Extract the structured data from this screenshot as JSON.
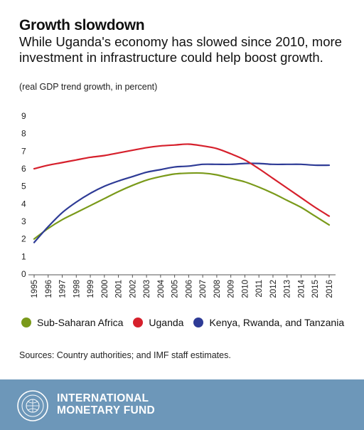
{
  "title": "Growth slowdown",
  "subtitle": "While Uganda's economy has slowed since 2010, more investment in infrastructure could help boost growth.",
  "unit_note": "(real GDP trend growth, in percent)",
  "source": "Sources: Country authorities; and IMF staff estimates.",
  "footer": {
    "line1": "INTERNATIONAL",
    "line2": "MONETARY FUND",
    "seal_icon": "imf-seal-icon"
  },
  "colors": {
    "sub_saharan": "#7a9a1a",
    "uganda": "#d6202c",
    "eac": "#2e3b96",
    "footer_bg": "#6d97b9"
  },
  "chart_data": {
    "type": "line",
    "title": "Growth slowdown",
    "ylabel": "(real GDP trend growth, in percent)",
    "xlabel": "",
    "ylim": [
      0,
      9
    ],
    "yticks": [
      0,
      1,
      2,
      3,
      4,
      5,
      6,
      7,
      8,
      9
    ],
    "grid": false,
    "legend_position": "bottom",
    "x": [
      "1995",
      "1996",
      "1997",
      "1998",
      "1999",
      "2000",
      "2001",
      "2002",
      "2003",
      "2004",
      "2005",
      "2006",
      "2007",
      "2008",
      "2009",
      "2010",
      "2011",
      "2012",
      "2013",
      "2014",
      "2015",
      "2016"
    ],
    "series": [
      {
        "name": "Sub-Saharan Africa",
        "color": "#7a9a1a",
        "values": [
          2.0,
          2.6,
          3.1,
          3.5,
          3.9,
          4.3,
          4.7,
          5.05,
          5.35,
          5.55,
          5.7,
          5.75,
          5.75,
          5.65,
          5.45,
          5.25,
          4.95,
          4.6,
          4.2,
          3.8,
          3.3,
          2.8
        ]
      },
      {
        "name": "Uganda",
        "color": "#d6202c",
        "values": [
          6.0,
          6.2,
          6.35,
          6.5,
          6.65,
          6.75,
          6.9,
          7.05,
          7.2,
          7.3,
          7.35,
          7.4,
          7.3,
          7.15,
          6.85,
          6.5,
          6.0,
          5.45,
          4.9,
          4.35,
          3.8,
          3.3
        ]
      },
      {
        "name": "Kenya, Rwanda, and Tanzania",
        "color": "#2e3b96",
        "values": [
          1.8,
          2.7,
          3.5,
          4.1,
          4.6,
          5.0,
          5.3,
          5.55,
          5.8,
          5.95,
          6.1,
          6.15,
          6.25,
          6.25,
          6.25,
          6.3,
          6.3,
          6.25,
          6.25,
          6.25,
          6.2,
          6.2
        ]
      }
    ]
  }
}
